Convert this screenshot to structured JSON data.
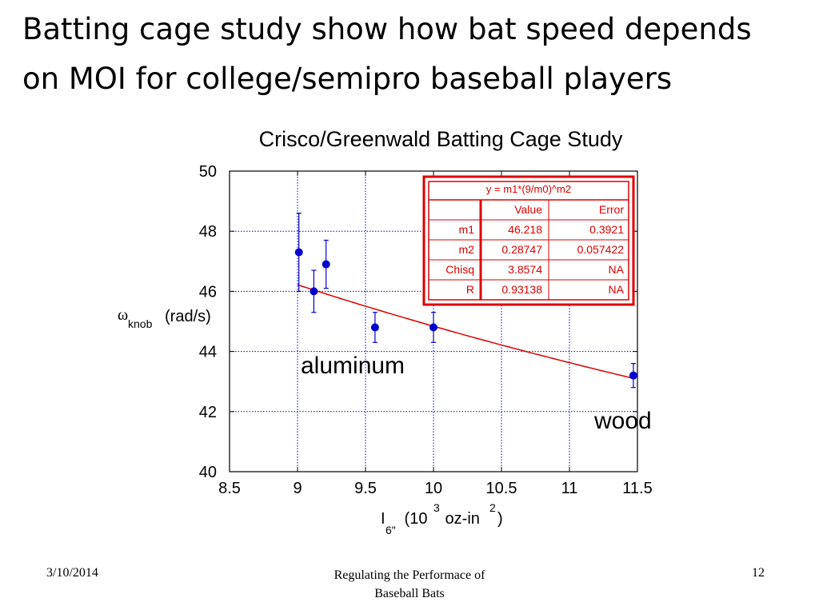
{
  "slide": {
    "title_line1": "Batting cage study show how bat speed depends",
    "title_line2": "on MOI for college/semipro baseball players"
  },
  "chart_data": {
    "type": "scatter",
    "title": "Crisco/Greenwald Batting Cage Study",
    "xlim": [
      8.5,
      11.5
    ],
    "ylim": [
      40,
      50
    ],
    "xticks": [
      "8.5",
      "9",
      "9.5",
      "10",
      "10.5",
      "11",
      "11.5"
    ],
    "yticks": [
      "40",
      "42",
      "44",
      "46",
      "48",
      "50"
    ],
    "grid": true,
    "xlabel": {
      "main": "I",
      "sub": "6\"",
      "rest1": " (10",
      "sup1": "3",
      "rest2": " oz-in",
      "sup2": "2",
      "rest3": ")"
    },
    "ylabel": {
      "symbol": "ω",
      "sub": "knob",
      "unit": "(rad/s)"
    },
    "points": [
      {
        "x": 9.01,
        "y": 47.3,
        "err": 1.3
      },
      {
        "x": 9.12,
        "y": 46.0,
        "err": 0.7
      },
      {
        "x": 9.21,
        "y": 46.9,
        "err": 0.8
      },
      {
        "x": 9.57,
        "y": 44.8,
        "err": 0.5
      },
      {
        "x": 10.0,
        "y": 44.8,
        "err": 0.5
      },
      {
        "x": 11.47,
        "y": 43.2,
        "err": 0.4
      }
    ],
    "fit": {
      "equation": "y = m1*(9/m0)^m2",
      "m1": 46.218,
      "m2": 0.28747,
      "x_range": [
        9.0,
        11.47
      ]
    },
    "fit_table": {
      "header": "y = m1*(9/m0)^m2",
      "columns": [
        "",
        "Value",
        "Error"
      ],
      "rows": [
        [
          "m1",
          "46.218",
          "0.3921"
        ],
        [
          "m2",
          "0.28747",
          "0.057422"
        ],
        [
          "Chisq",
          "3.8574",
          "NA"
        ],
        [
          "R",
          "0.93138",
          "NA"
        ]
      ]
    },
    "annotations": [
      "aluminum",
      "wood"
    ],
    "colors": {
      "points": "#0000cc",
      "fit": "#dd0000",
      "grid": "#0000cc",
      "table_border": "#dd0000"
    }
  },
  "footer": {
    "date": "3/10/2014",
    "center_line1": "Regulating the Performace of",
    "center_line2": "Baseball Bats",
    "page": "12"
  }
}
